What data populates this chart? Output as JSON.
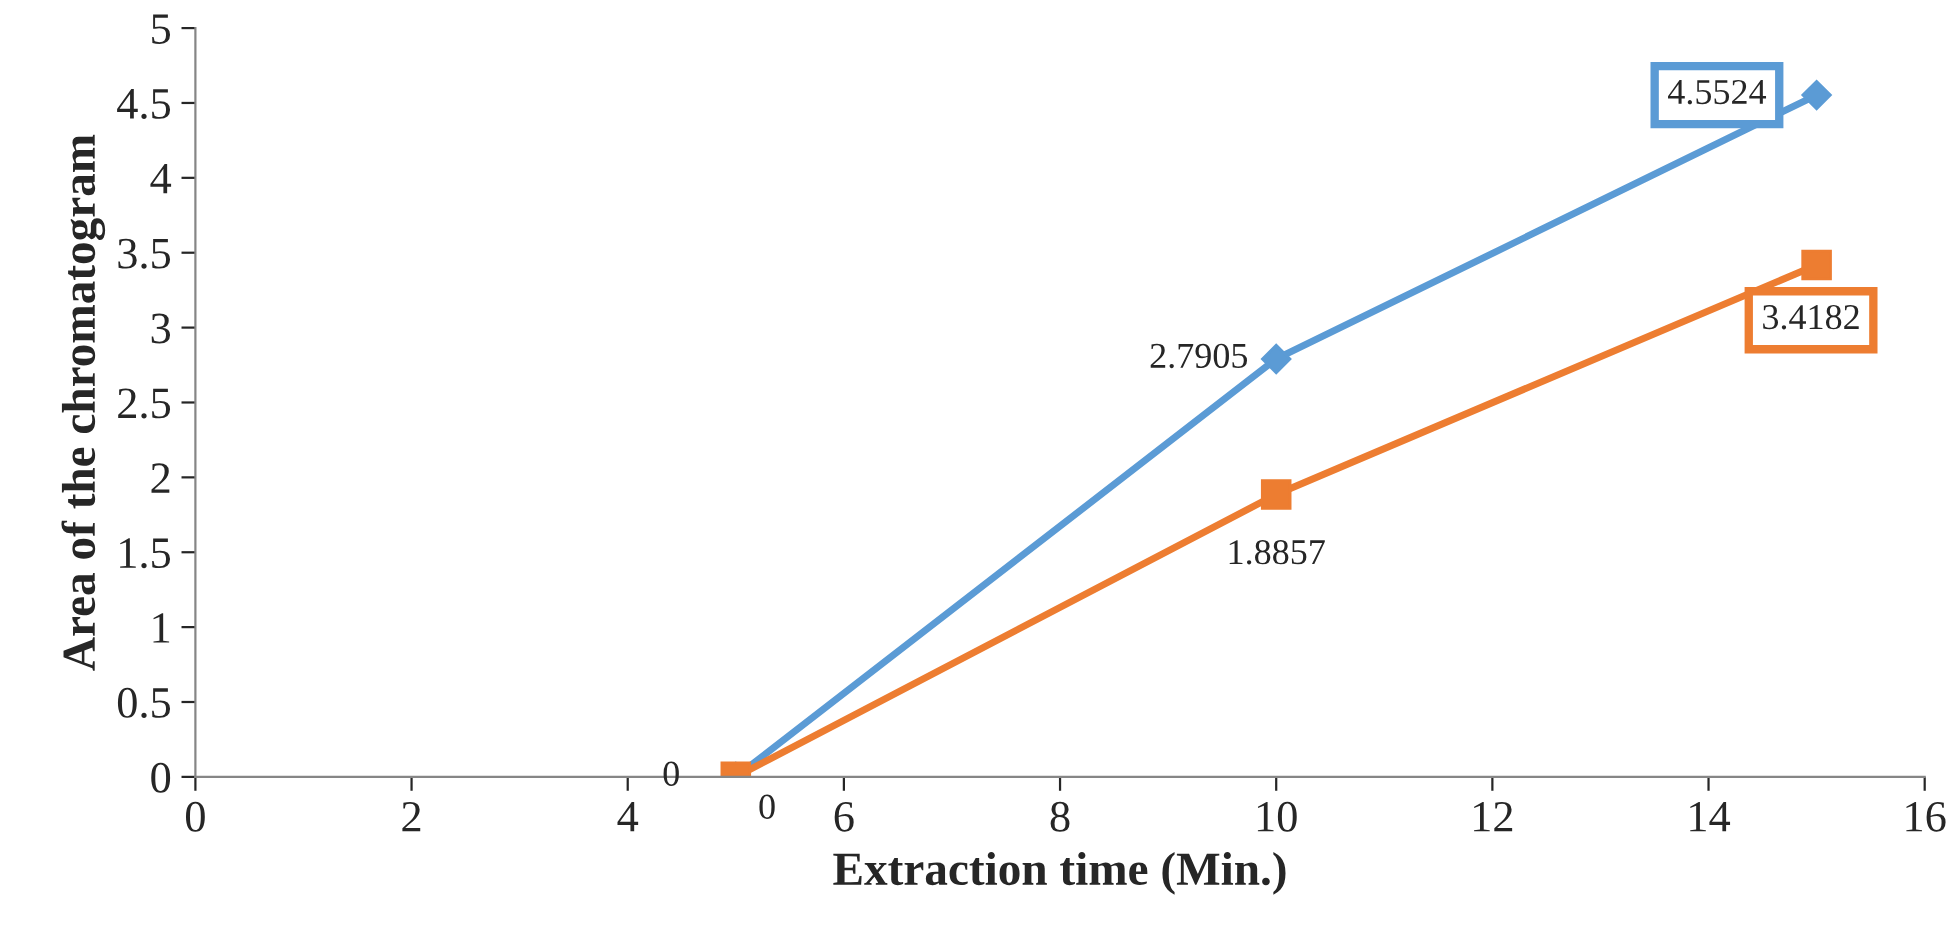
{
  "chart_data": {
    "type": "line",
    "xlabel": "Extraction time (Min.)",
    "ylabel": "Area of the chromatogram",
    "x": [
      5,
      10,
      15
    ],
    "series": [
      {
        "color": "#5b9bd5",
        "marker": "diamond",
        "values": [
          0,
          2.7905,
          4.5524
        ]
      },
      {
        "color": "#ed7d31",
        "marker": "square",
        "values": [
          0,
          1.8857,
          3.4182
        ]
      }
    ],
    "xlim": [
      0,
      16
    ],
    "xticks": [
      0,
      2,
      4,
      6,
      8,
      10,
      12,
      14,
      16
    ],
    "ylim": [
      0,
      5
    ],
    "yticks": [
      0,
      0.5,
      1,
      1.5,
      2,
      2.5,
      3,
      3.5,
      4,
      4.5,
      5
    ],
    "grid": false,
    "legend": false,
    "data_labels": true,
    "line_style": "solid"
  }
}
